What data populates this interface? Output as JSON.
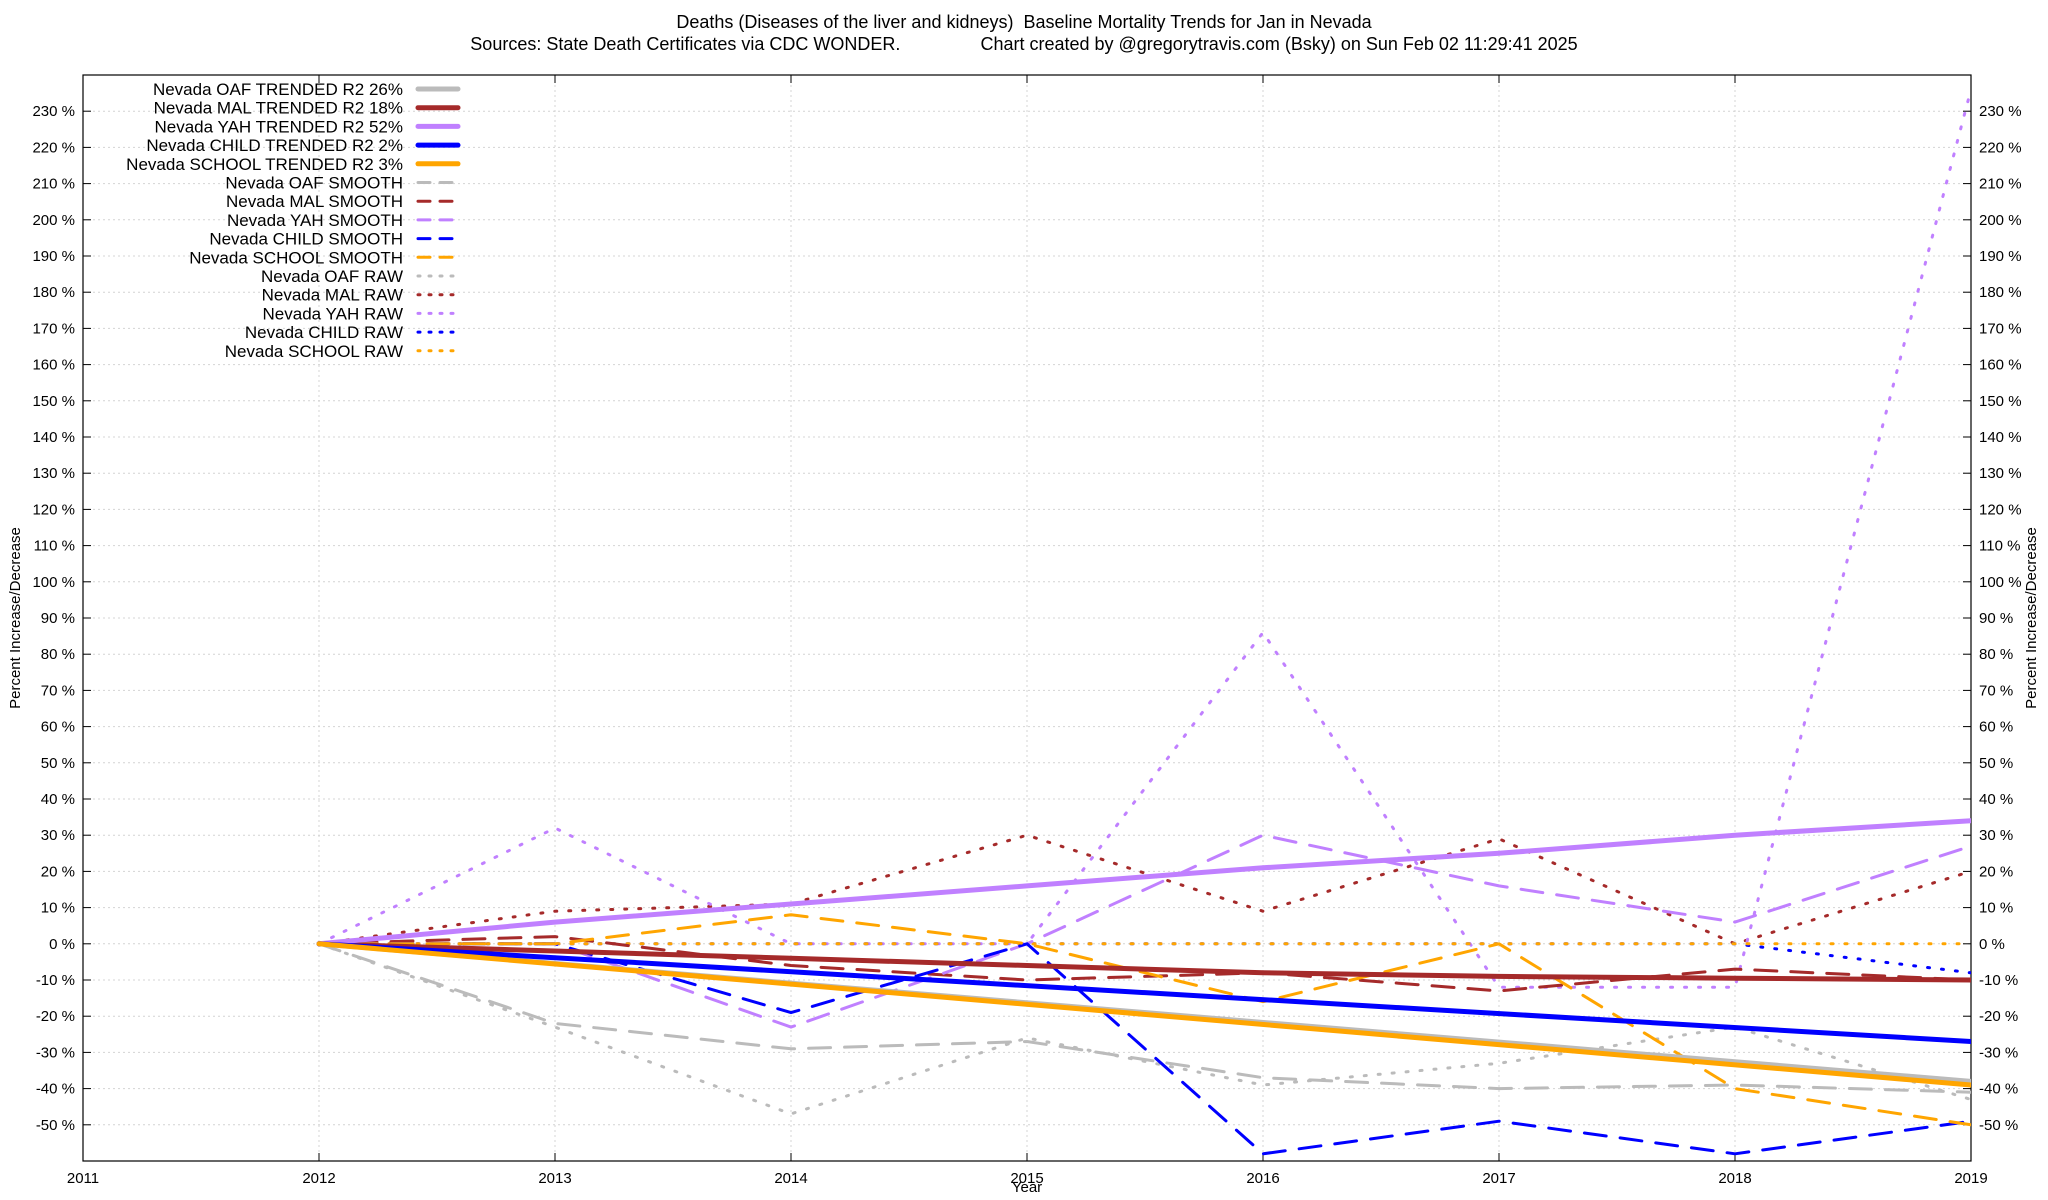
{
  "title_line1": "Deaths (Diseases of the liver and kidneys)  Baseline Mortality Trends for Jan in Nevada",
  "title_line2": "Sources: State Death Certificates via CDC WONDER.                Chart created by @gregorytravis.com (Bsky) on Sun Feb 02 11:29:41 2025",
  "chart_data": {
    "type": "line",
    "xlabel": "Year",
    "ylabel": "Percent Increase/Decrease",
    "y2label": "Percent Increase/Decrease",
    "xlim": [
      2011,
      2019
    ],
    "ylim": [
      -60,
      240
    ],
    "x_ticks": [
      "2011",
      "2012",
      "2013",
      "2014",
      "2015",
      "2016",
      "2017",
      "2018",
      "2019"
    ],
    "y_ticks": [
      "-50 %",
      "-40 %",
      "-30 %",
      "-20 %",
      "-10 %",
      "0 %",
      "10 %",
      "20 %",
      "30 %",
      "40 %",
      "50 %",
      "60 %",
      "70 %",
      "80 %",
      "90 %",
      "100 %",
      "110 %",
      "120 %",
      "130 %",
      "140 %",
      "150 %",
      "160 %",
      "170 %",
      "180 %",
      "190 %",
      "200 %",
      "210 %",
      "220 %",
      "230 %"
    ],
    "grid": true,
    "legend_position": "top-left",
    "series": [
      {
        "name": "Nevada OAF TRENDED R2  26%",
        "color": "#bbbbbb",
        "style": "solid",
        "x": [
          2012,
          2019
        ],
        "y": [
          0,
          -38
        ]
      },
      {
        "name": "Nevada MAL TRENDED R2  18%",
        "color": "#a52a2a",
        "style": "solid",
        "x": [
          2012,
          2013,
          2014,
          2015,
          2016,
          2017,
          2018,
          2019
        ],
        "y": [
          0,
          -2,
          -4,
          -6,
          -8,
          -9,
          -9.5,
          -10
        ]
      },
      {
        "name": "Nevada YAH TRENDED R2  52%",
        "color": "#c080ff",
        "style": "solid",
        "x": [
          2012,
          2013,
          2014,
          2015,
          2016,
          2017,
          2018,
          2019
        ],
        "y": [
          0,
          6,
          11,
          16,
          21,
          25,
          30,
          34
        ]
      },
      {
        "name": "Nevada CHILD TRENDED R2  2%",
        "color": "#0000ff",
        "style": "solid",
        "x": [
          2012,
          2019
        ],
        "y": [
          0,
          -27
        ]
      },
      {
        "name": "Nevada SCHOOL TRENDED R2  3%",
        "color": "#ffa500",
        "style": "solid",
        "x": [
          2012,
          2019
        ],
        "y": [
          0,
          -39
        ]
      },
      {
        "name": "Nevada OAF SMOOTH",
        "color": "#bbbbbb",
        "style": "dashed",
        "x": [
          2012,
          2013,
          2014,
          2015,
          2016,
          2017,
          2018,
          2019
        ],
        "y": [
          0,
          -22,
          -29,
          -27,
          -37,
          -40,
          -39,
          -41
        ]
      },
      {
        "name": "Nevada MAL SMOOTH",
        "color": "#a52a2a",
        "style": "dashed",
        "x": [
          2012,
          2013,
          2014,
          2015,
          2016,
          2017,
          2018,
          2019
        ],
        "y": [
          0,
          2,
          -6,
          -10,
          -8,
          -13,
          -7,
          -10
        ]
      },
      {
        "name": "Nevada YAH SMOOTH",
        "color": "#c080ff",
        "style": "dashed",
        "x": [
          2012,
          2013,
          2014,
          2015,
          2016,
          2017,
          2018,
          2019
        ],
        "y": [
          0,
          0,
          -23,
          0,
          30,
          16,
          6,
          27
        ]
      },
      {
        "name": "Nevada CHILD SMOOTH",
        "color": "#0000ff",
        "style": "dashed",
        "x": [
          2012,
          2013,
          2014,
          2015,
          2016,
          2017,
          2018,
          2019
        ],
        "y": [
          0,
          0,
          -19,
          0,
          -58,
          -49,
          -58,
          -49
        ]
      },
      {
        "name": "Nevada SCHOOL SMOOTH",
        "color": "#ffa500",
        "style": "dashed",
        "x": [
          2012,
          2013,
          2014,
          2015,
          2016,
          2017,
          2018,
          2019
        ],
        "y": [
          0,
          0,
          8,
          0,
          -16,
          0,
          -40,
          -50
        ]
      },
      {
        "name": "Nevada OAF RAW",
        "color": "#bbbbbb",
        "style": "dotted",
        "x": [
          2012,
          2013,
          2014,
          2015,
          2016,
          2017,
          2018,
          2019
        ],
        "y": [
          0,
          -23,
          -47,
          -26,
          -39,
          -33,
          -23,
          -43
        ]
      },
      {
        "name": "Nevada MAL RAW",
        "color": "#a52a2a",
        "style": "dotted",
        "x": [
          2012,
          2013,
          2014,
          2015,
          2016,
          2017,
          2018,
          2019
        ],
        "y": [
          0,
          9,
          11,
          30,
          9,
          29,
          0,
          20
        ]
      },
      {
        "name": "Nevada YAH RAW",
        "color": "#c080ff",
        "style": "dotted",
        "x": [
          2012,
          2013,
          2014,
          2015,
          2016,
          2017,
          2018,
          2019
        ],
        "y": [
          0,
          32,
          0,
          0,
          86,
          -12,
          -12,
          236
        ]
      },
      {
        "name": "Nevada CHILD RAW",
        "color": "#0000ff",
        "style": "dotted",
        "x": [
          2012,
          2013,
          2014,
          2015,
          2016,
          2017,
          2018,
          2019
        ],
        "y": [
          0,
          0,
          0,
          0,
          0,
          0,
          0,
          -8
        ]
      },
      {
        "name": "Nevada SCHOOL RAW",
        "color": "#ffa500",
        "style": "dotted",
        "x": [
          2012,
          2013,
          2014,
          2015,
          2016,
          2017,
          2018,
          2019
        ],
        "y": [
          0,
          0,
          0,
          0,
          0,
          0,
          0,
          0
        ]
      }
    ]
  }
}
